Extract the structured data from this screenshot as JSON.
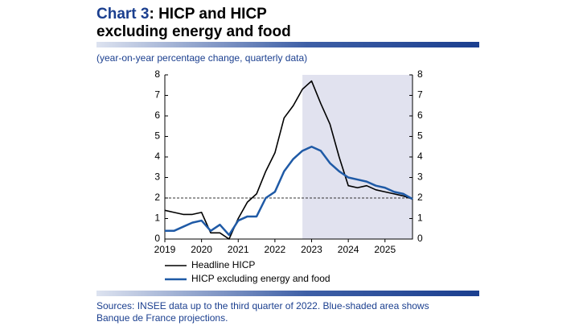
{
  "chart_data": {
    "type": "line",
    "chart_number": "Chart 3",
    "title_lines": [
      ": HICP and HICP",
      "excluding energy and food"
    ],
    "subtitle": "(year-on-year percentage change, quarterly data)",
    "note_lines": [
      "Sources: INSEE data up to the third quarter of 2022. Blue-shaded area shows",
      "Banque de France projections."
    ],
    "x": [
      2019,
      2019.25,
      2019.5,
      2019.75,
      2020,
      2020.25,
      2020.5,
      2020.75,
      2021,
      2021.25,
      2021.5,
      2021.75,
      2022,
      2022.25,
      2022.5,
      2022.75,
      2023,
      2023.25,
      2023.5,
      2023.75,
      2024,
      2024.25,
      2024.5,
      2024.75,
      2025,
      2025.25,
      2025.5,
      2025.75
    ],
    "series": [
      {
        "name": "Headline HICP",
        "color": "#000000",
        "values": [
          1.4,
          1.3,
          1.2,
          1.2,
          1.3,
          0.3,
          0.3,
          0.0,
          1.0,
          1.8,
          2.2,
          3.3,
          4.2,
          5.9,
          6.5,
          7.3,
          7.7,
          6.6,
          5.6,
          4.0,
          2.6,
          2.5,
          2.6,
          2.4,
          2.3,
          2.2,
          2.1,
          1.95
        ]
      },
      {
        "name": "HICP excluding energy and food",
        "color": "#1f5aa6",
        "values": [
          0.4,
          0.4,
          0.6,
          0.8,
          0.9,
          0.4,
          0.7,
          0.2,
          0.9,
          1.1,
          1.1,
          2.0,
          2.3,
          3.3,
          3.9,
          4.3,
          4.5,
          4.3,
          3.7,
          3.3,
          3.0,
          2.9,
          2.8,
          2.6,
          2.5,
          2.3,
          2.2,
          1.95
        ]
      }
    ],
    "xlim": [
      2019,
      2025.75
    ],
    "xticks": [
      2019,
      2020,
      2021,
      2022,
      2023,
      2024,
      2025
    ],
    "ylim": [
      0,
      8
    ],
    "yticks": [
      0,
      1,
      2,
      3,
      4,
      5,
      6,
      7,
      8
    ],
    "y2lim": [
      0,
      8
    ],
    "y2ticks": [
      0,
      1,
      2,
      3,
      4,
      5,
      6,
      7,
      8
    ],
    "reference_line": 2,
    "projection_start": 2022.75,
    "shade_color": "#e1e2ef",
    "grid": false
  }
}
